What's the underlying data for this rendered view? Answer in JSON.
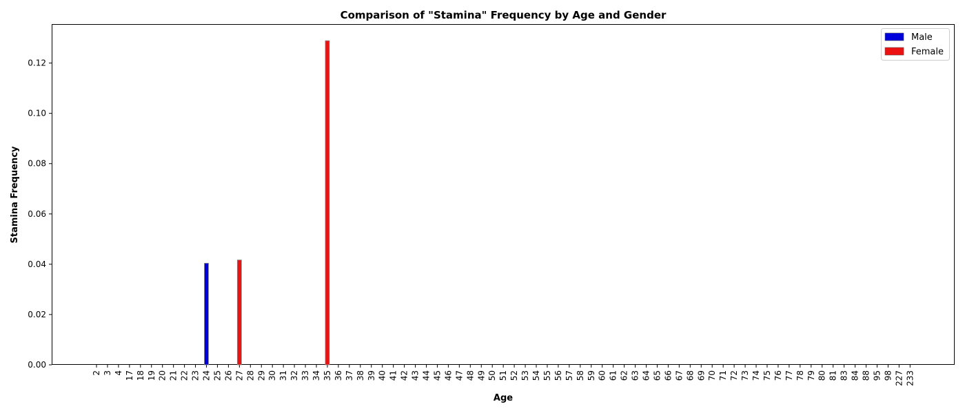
{
  "chart_data": {
    "type": "bar",
    "title": "Comparison of \"Stamina\" Frequency by Age and Gender",
    "xlabel": "Age",
    "ylabel": "Stamina Frequency",
    "ylim": [
      0,
      0.1355
    ],
    "yticks": [
      "0.00",
      "0.02",
      "0.04",
      "0.06",
      "0.08",
      "0.10",
      "0.12"
    ],
    "categories": [
      "2",
      "3",
      "4",
      "17",
      "18",
      "19",
      "20",
      "21",
      "22",
      "23",
      "24",
      "25",
      "26",
      "27",
      "28",
      "29",
      "30",
      "31",
      "32",
      "33",
      "34",
      "35",
      "36",
      "37",
      "38",
      "39",
      "40",
      "41",
      "42",
      "43",
      "44",
      "45",
      "46",
      "47",
      "48",
      "49",
      "50",
      "51",
      "52",
      "53",
      "54",
      "55",
      "56",
      "57",
      "58",
      "59",
      "60",
      "61",
      "62",
      "63",
      "64",
      "65",
      "66",
      "67",
      "68",
      "69",
      "70",
      "71",
      "72",
      "73",
      "74",
      "75",
      "76",
      "77",
      "78",
      "79",
      "80",
      "81",
      "83",
      "84",
      "88",
      "95",
      "98",
      "227",
      "233"
    ],
    "series": [
      {
        "name": "Male",
        "color": "#0000dd",
        "values": {
          "24": 0.0404
        }
      },
      {
        "name": "Female",
        "color": "#ee1111",
        "values": {
          "27": 0.0417,
          "35": 0.1289
        }
      }
    ],
    "legend": "top-right",
    "grid": false
  }
}
